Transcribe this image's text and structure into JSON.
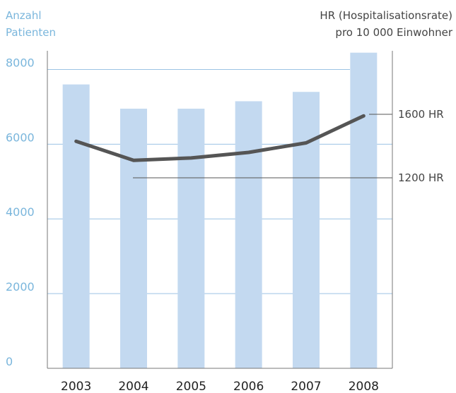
{
  "chart_data": {
    "type": "bar-line",
    "ylabel": [
      "Anzahl",
      "Patienten"
    ],
    "y2label": [
      "HR (Hospitalisationsrate)",
      "pro 10 000 Einwohner"
    ],
    "categories": [
      "2003",
      "2004",
      "2005",
      "2006",
      "2007",
      "2008"
    ],
    "series": [
      {
        "name": "Anzahl Patienten",
        "type": "bar",
        "color": "#c3d9f0",
        "values": [
          7600,
          6950,
          6950,
          7150,
          7400,
          8450
        ]
      },
      {
        "name": "HR",
        "type": "line",
        "axis": "y2",
        "color": "#555555",
        "values": [
          1430,
          1310,
          1325,
          1360,
          1420,
          1590
        ]
      }
    ],
    "ylim": [
      0,
      8500
    ],
    "yticks": [
      0,
      2000,
      4000,
      6000,
      8000
    ],
    "y2lim": [
      0,
      2000
    ],
    "y2ticks": [
      {
        "value": 1600,
        "label": "1600 HR"
      },
      {
        "value": 1200,
        "label": "1200 HR"
      }
    ],
    "grid": true
  }
}
